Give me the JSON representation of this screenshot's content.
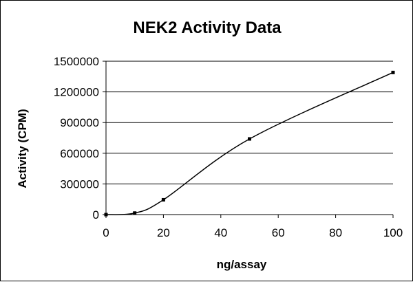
{
  "chart_data": {
    "type": "line",
    "title": "NEK2 Activity Data",
    "xlabel": "ng/assay",
    "ylabel": "Activity (CPM)",
    "xlim": [
      0,
      100
    ],
    "ylim": [
      0,
      1500000
    ],
    "x_ticks": [
      "0",
      "20",
      "40",
      "60",
      "80",
      "100"
    ],
    "y_ticks": [
      "0",
      "300000",
      "600000",
      "900000",
      "1200000",
      "1500000"
    ],
    "grid": "horizontal",
    "legend": "none",
    "series": [
      {
        "x": [
          0,
          10,
          20,
          50,
          100
        ],
        "values": [
          0,
          15000,
          145000,
          740000,
          1390000
        ]
      }
    ],
    "colors": {
      "line": "#000000",
      "grid": "#000000",
      "marker": "#000000"
    }
  }
}
